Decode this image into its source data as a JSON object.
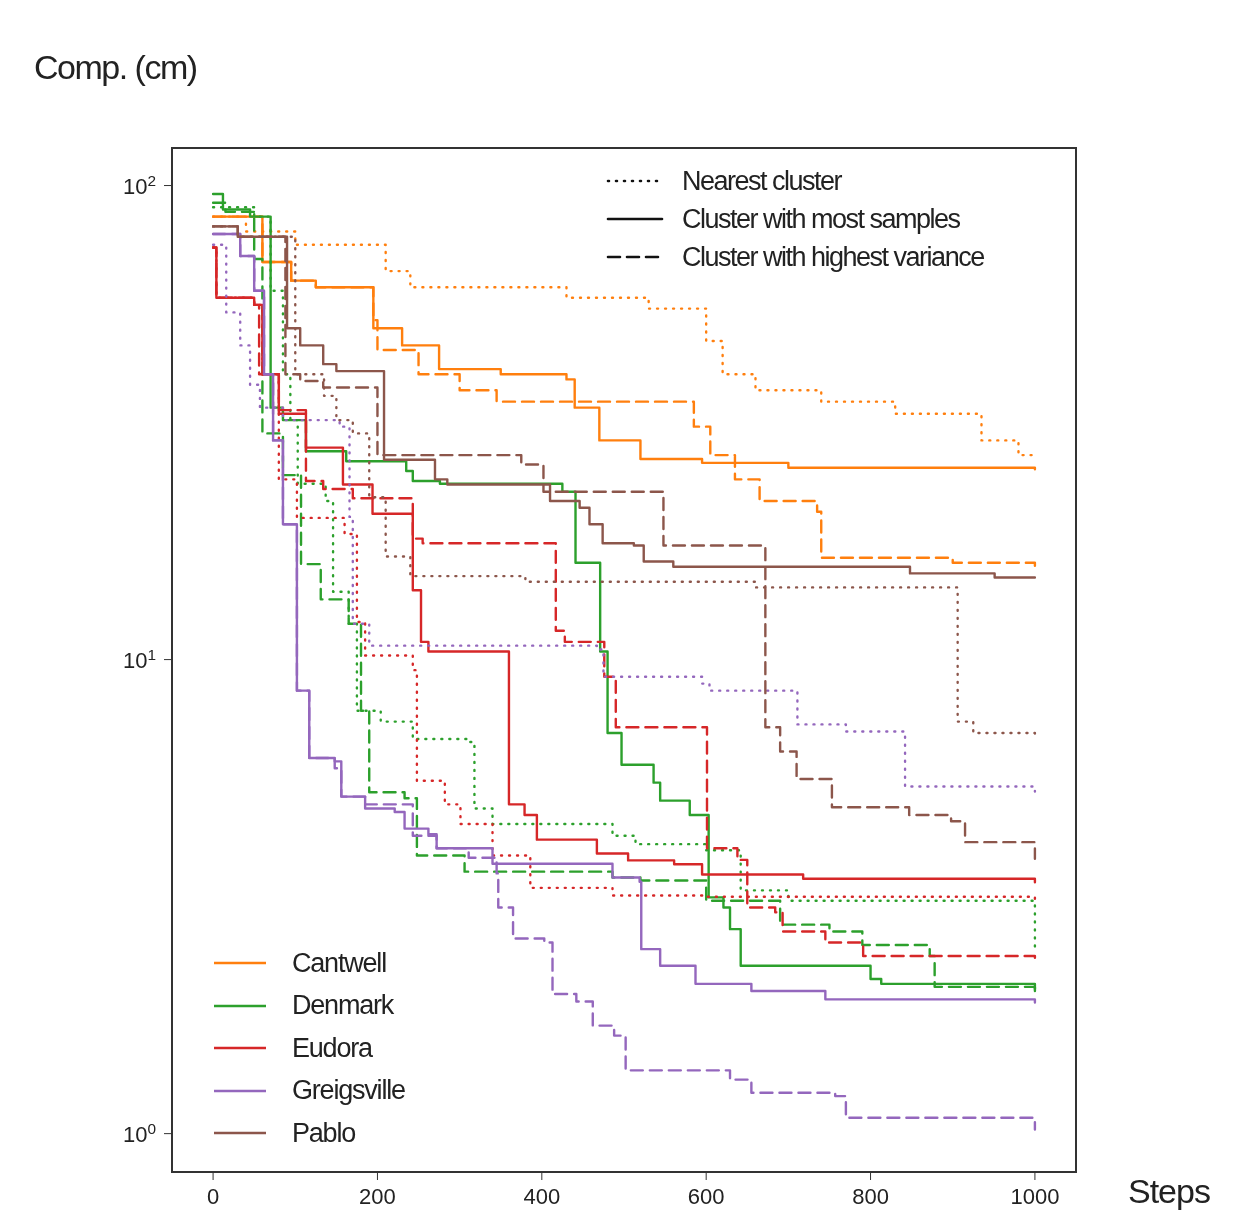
{
  "chart_data": {
    "type": "step",
    "ylabel": "Comp. (cm)",
    "xlabel": "Steps",
    "xlim": [
      -50,
      1050
    ],
    "xticks": [
      0,
      200,
      400,
      600,
      800,
      1000
    ],
    "ylim": [
      0.83,
      120
    ],
    "yticks": [
      {
        "value": 1,
        "label": "10$^{0}$"
      },
      {
        "value": 10,
        "label": "10$^{1}$"
      },
      {
        "value": 100,
        "label": "10$^{2}$"
      }
    ],
    "log": "y",
    "legend": "bottom left",
    "annotations": [
      "Nearest cluster",
      "Cluster with most samples",
      "Cluster with highest variance"
    ],
    "series": [
      {
        "color": "#ff7f0e",
        "line_style": "dotted",
        "x": [
          0,
          40,
          100,
          210,
          240,
          430,
          530,
          600,
          620,
          660,
          740,
          830,
          935,
          980,
          1000
        ],
        "values": [
          86,
          80,
          75,
          66,
          61,
          58,
          55,
          47,
          40,
          37,
          35,
          33,
          29,
          27,
          27
        ]
      },
      {
        "name": "Cantwell",
        "color": "#ff7f0e",
        "line_style": "solid",
        "x": [
          0,
          60,
          95,
          125,
          195,
          230,
          275,
          350,
          430,
          440,
          470,
          520,
          595,
          700,
          1000
        ],
        "values": [
          86,
          69,
          63,
          61,
          50,
          46,
          41,
          40,
          39,
          34,
          29,
          26.5,
          26,
          25.4,
          25.2
        ]
      },
      {
        "color": "#ff7f0e",
        "line_style": "dashed",
        "x": [
          0,
          60,
          95,
          125,
          195,
          200,
          250,
          300,
          345,
          585,
          605,
          635,
          665,
          735,
          740,
          900,
          1000
        ],
        "values": [
          86,
          69,
          63,
          61,
          52,
          45,
          40,
          37,
          35,
          31,
          27,
          24,
          21.6,
          20.5,
          16.4,
          16,
          15.5
        ]
      },
      {
        "color": "#2ca02c",
        "line_style": "dotted",
        "x": [
          0,
          50,
          70,
          85,
          94,
          103,
          137,
          146,
          165,
          175,
          204,
          243,
          313,
          318,
          340,
          486,
          514,
          600,
          642,
          700,
          983,
          1000
        ],
        "values": [
          90,
          86,
          60,
          40,
          32,
          23.5,
          21.6,
          13.9,
          11.9,
          7.8,
          7.4,
          6.8,
          6.7,
          4.85,
          4.5,
          4.25,
          4.08,
          3.96,
          3.26,
          3.1,
          3.1,
          2.45
        ]
      },
      {
        "name": "Denmark",
        "color": "#2ca02c",
        "line_style": "solid",
        "x": [
          0,
          12,
          45,
          70,
          85,
          113,
          162,
          235,
          243,
          276,
          425,
          441,
          471,
          480,
          497,
          536,
          544,
          580,
          603,
          621,
          629,
          642,
          800,
          813,
          1000
        ],
        "values": [
          96,
          89,
          86,
          34,
          32,
          27.5,
          26.2,
          25,
          23.8,
          23.5,
          22.6,
          16,
          10.4,
          7,
          6,
          5.5,
          5.04,
          4.7,
          3.15,
          3,
          2.7,
          2.26,
          2.12,
          2.07,
          2
        ]
      },
      {
        "color": "#2ca02c",
        "line_style": "dashed",
        "x": [
          0,
          15,
          50,
          60,
          85,
          107,
          131,
          165,
          180,
          190,
          233,
          248,
          306,
          486,
          520,
          600,
          690,
          750,
          790,
          872,
          878,
          1000
        ],
        "values": [
          92,
          88,
          70,
          30,
          24.5,
          15.9,
          13.4,
          11.9,
          7.8,
          5.25,
          5.1,
          3.86,
          3.57,
          3.47,
          3.42,
          3.1,
          2.76,
          2.67,
          2.5,
          2.37,
          2.04,
          1.98
        ]
      },
      {
        "color": "#d62728",
        "line_style": "dotted",
        "x": [
          0,
          4,
          50,
          60,
          80,
          102,
          160,
          175,
          185,
          243,
          248,
          282,
          301,
          340,
          386,
          486,
          600,
          1000
        ],
        "values": [
          74,
          58,
          56,
          40,
          24,
          19.9,
          18.4,
          12,
          10.2,
          9.5,
          5.55,
          4.95,
          4.5,
          3.86,
          3.3,
          3.18,
          3.16,
          3.11
        ]
      },
      {
        "name": "Eudora",
        "color": "#d62728",
        "line_style": "solid",
        "x": [
          0,
          4,
          50,
          60,
          80,
          113,
          158,
          194,
          243,
          253,
          262,
          360,
          379,
          394,
          467,
          505,
          561,
          595,
          718,
          1000
        ],
        "values": [
          74,
          58,
          56,
          40,
          33,
          28,
          23.4,
          20.3,
          14,
          10.9,
          10.4,
          4.95,
          4.7,
          4.17,
          3.9,
          3.77,
          3.7,
          3.52,
          3.45,
          3.39
        ]
      },
      {
        "color": "#d62728",
        "line_style": "dashed",
        "x": [
          0,
          4,
          50,
          56,
          80,
          113,
          134,
          170,
          243,
          255,
          417,
          428,
          476,
          490,
          601,
          638,
          650,
          684,
          693,
          745,
          791,
          1000
        ],
        "values": [
          74,
          58,
          56,
          40,
          33.6,
          23.8,
          22.9,
          21.9,
          18,
          17.6,
          11.5,
          10.9,
          9.2,
          7.2,
          4,
          3.78,
          3,
          2.93,
          2.67,
          2.53,
          2.37,
          2.35
        ]
      },
      {
        "color": "#9467bd",
        "line_style": "dotted",
        "x": [
          0,
          16,
          33,
          45,
          57,
          85,
          154,
          166,
          170,
          190,
          467,
          475,
          595,
          604,
          711,
          770,
          842,
          1000
        ],
        "values": [
          75,
          54,
          46,
          38,
          34,
          32,
          31,
          20,
          11.9,
          10.7,
          10.5,
          9.2,
          8.9,
          8.6,
          7.3,
          7.05,
          5.4,
          5.27
        ]
      },
      {
        "name": "Greigsville",
        "color": "#9467bd",
        "line_style": "solid",
        "x": [
          0,
          33,
          50,
          62,
          73,
          85,
          102,
          117,
          148,
          156,
          185,
          221,
          233,
          262,
          272,
          340,
          486,
          519,
          521,
          544,
          587,
          655,
          745,
          1000
        ],
        "values": [
          79,
          71,
          60,
          40,
          29,
          19.3,
          8.6,
          6.2,
          6.1,
          5.14,
          4.85,
          4.77,
          4.4,
          4.28,
          4,
          3.71,
          3.47,
          3.4,
          2.45,
          2.26,
          2.07,
          2,
          1.92,
          1.89
        ]
      },
      {
        "color": "#9467bd",
        "line_style": "dashed",
        "x": [
          0,
          33,
          50,
          62,
          73,
          85,
          102,
          117,
          148,
          156,
          185,
          243,
          272,
          311,
          345,
          347,
          365,
          403,
          413,
          442,
          462,
          488,
          502,
          629,
          655,
          757,
          770,
          1000
        ],
        "values": [
          79,
          71,
          60,
          40,
          29,
          19.3,
          8.6,
          6.2,
          5.9,
          5.14,
          4.95,
          4.25,
          4,
          3.82,
          3.54,
          3,
          2.58,
          2.53,
          1.97,
          1.9,
          1.69,
          1.61,
          1.36,
          1.3,
          1.22,
          1.2,
          1.08,
          1.02
        ]
      },
      {
        "color": "#8c564b",
        "line_style": "dotted",
        "x": [
          0,
          30,
          100,
          135,
          150,
          170,
          190,
          210,
          240,
          380,
          660,
          882,
          906,
          925,
          1000
        ],
        "values": [
          82,
          78,
          40,
          36,
          32,
          30,
          22,
          16.5,
          15,
          14.6,
          14.2,
          14.2,
          7.4,
          7,
          6.8
        ]
      },
      {
        "name": "Pablo",
        "color": "#8c564b",
        "line_style": "solid",
        "x": [
          0,
          30,
          90,
          106,
          134,
          150,
          208,
          270,
          285,
          410,
          446,
          458,
          474,
          512,
          524,
          560,
          848,
          951,
          1000
        ],
        "values": [
          82,
          78,
          50,
          46,
          42,
          40.6,
          26.4,
          24,
          23.4,
          21.6,
          20.9,
          19.3,
          17.6,
          17.4,
          16.1,
          15.7,
          15.2,
          14.9,
          14.9
        ]
      },
      {
        "color": "#8c564b",
        "line_style": "dashed",
        "x": [
          0,
          30,
          88,
          106,
          134,
          200,
          375,
          402,
          548,
          672,
          690,
          710,
          753,
          847,
          898,
          915,
          1000
        ],
        "values": [
          82,
          78,
          40,
          38.7,
          37.5,
          27,
          25.8,
          22.6,
          17.4,
          7.2,
          6.4,
          5.6,
          4.88,
          4.7,
          4.56,
          4.12,
          3.8
        ]
      }
    ]
  }
}
